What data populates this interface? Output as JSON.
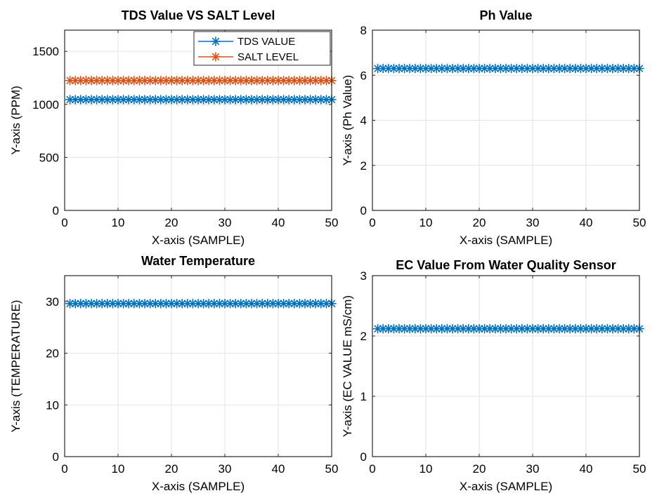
{
  "chart_data": [
    {
      "type": "line",
      "title": "TDS Value VS SALT Level",
      "xlabel": "X-axis (SAMPLE)",
      "ylabel": "Y-axis (PPM)",
      "xlim": [
        0,
        50
      ],
      "ylim": [
        0,
        1700
      ],
      "xticks": [
        0,
        10,
        20,
        30,
        40,
        50
      ],
      "yticks": [
        0,
        500,
        1000,
        1500
      ],
      "grid": true,
      "legend_position": "top-right",
      "x_start": 1,
      "x_end": 50,
      "series": [
        {
          "name": "TDS VALUE",
          "color": "#0072BD",
          "marker": "asterisk",
          "values": [
            1045,
            1045,
            1045,
            1045,
            1045,
            1045,
            1045,
            1045,
            1045,
            1045,
            1045,
            1045,
            1045,
            1045,
            1045,
            1045,
            1045,
            1045,
            1045,
            1045,
            1045,
            1045,
            1045,
            1045,
            1045,
            1045,
            1045,
            1045,
            1045,
            1045,
            1045,
            1045,
            1045,
            1045,
            1045,
            1045,
            1045,
            1045,
            1045,
            1045,
            1045,
            1045,
            1045,
            1045,
            1045,
            1045,
            1045,
            1045,
            1045,
            1045
          ]
        },
        {
          "name": "SALT LEVEL",
          "color": "#D95319",
          "marker": "asterisk",
          "values": [
            1225,
            1225,
            1225,
            1225,
            1225,
            1225,
            1225,
            1225,
            1225,
            1225,
            1225,
            1225,
            1225,
            1225,
            1225,
            1225,
            1225,
            1225,
            1225,
            1225,
            1225,
            1225,
            1225,
            1225,
            1225,
            1225,
            1225,
            1225,
            1225,
            1225,
            1225,
            1225,
            1225,
            1225,
            1225,
            1225,
            1225,
            1225,
            1225,
            1225,
            1225,
            1225,
            1225,
            1225,
            1225,
            1225,
            1225,
            1225,
            1225,
            1225
          ]
        }
      ]
    },
    {
      "type": "line",
      "title": "Ph Value",
      "xlabel": "X-axis (SAMPLE)",
      "ylabel": "Y-axis (Ph Value)",
      "xlim": [
        0,
        50
      ],
      "ylim": [
        0,
        8
      ],
      "xticks": [
        0,
        10,
        20,
        30,
        40,
        50
      ],
      "yticks": [
        0,
        2,
        4,
        6,
        8
      ],
      "grid": true,
      "x_start": 1,
      "x_end": 50,
      "series": [
        {
          "color": "#0072BD",
          "marker": "asterisk",
          "values": [
            6.3,
            6.3,
            6.3,
            6.3,
            6.3,
            6.3,
            6.3,
            6.3,
            6.3,
            6.3,
            6.3,
            6.3,
            6.3,
            6.3,
            6.3,
            6.3,
            6.3,
            6.3,
            6.3,
            6.3,
            6.3,
            6.3,
            6.3,
            6.3,
            6.3,
            6.3,
            6.3,
            6.3,
            6.3,
            6.3,
            6.3,
            6.3,
            6.3,
            6.3,
            6.3,
            6.3,
            6.3,
            6.3,
            6.3,
            6.3,
            6.3,
            6.3,
            6.3,
            6.3,
            6.3,
            6.3,
            6.3,
            6.3,
            6.3,
            6.3
          ]
        }
      ]
    },
    {
      "type": "line",
      "title": "Water Temperature",
      "xlabel": "X-axis (SAMPLE)",
      "ylabel": "Y-axis (TEMPERATURE)",
      "xlim": [
        0,
        50
      ],
      "ylim": [
        0,
        35
      ],
      "xticks": [
        0,
        10,
        20,
        30,
        40,
        50
      ],
      "yticks": [
        0,
        10,
        20,
        30
      ],
      "grid": true,
      "x_start": 1,
      "x_end": 50,
      "series": [
        {
          "color": "#0072BD",
          "marker": "asterisk",
          "values": [
            29.6,
            29.6,
            29.6,
            29.6,
            29.6,
            29.6,
            29.6,
            29.6,
            29.6,
            29.6,
            29.6,
            29.6,
            29.6,
            29.6,
            29.6,
            29.6,
            29.6,
            29.6,
            29.6,
            29.6,
            29.6,
            29.6,
            29.6,
            29.6,
            29.6,
            29.6,
            29.6,
            29.6,
            29.6,
            29.6,
            29.6,
            29.6,
            29.6,
            29.6,
            29.6,
            29.6,
            29.6,
            29.6,
            29.6,
            29.6,
            29.6,
            29.6,
            29.6,
            29.6,
            29.6,
            29.6,
            29.6,
            29.6,
            29.6,
            29.6
          ]
        }
      ]
    },
    {
      "type": "line",
      "title": "EC Value From Water Quality Sensor",
      "xlabel": "X-axis (SAMPLE)",
      "ylabel": "Y-axis (EC VALUE mS/cm)",
      "xlim": [
        0,
        50
      ],
      "ylim": [
        0,
        3
      ],
      "xticks": [
        0,
        10,
        20,
        30,
        40,
        50
      ],
      "yticks": [
        0,
        1,
        2,
        3
      ],
      "grid": true,
      "x_start": 1,
      "x_end": 50,
      "series": [
        {
          "color": "#0072BD",
          "marker": "asterisk",
          "values": [
            2.12,
            2.12,
            2.12,
            2.12,
            2.12,
            2.12,
            2.12,
            2.12,
            2.12,
            2.12,
            2.12,
            2.12,
            2.12,
            2.12,
            2.12,
            2.12,
            2.12,
            2.12,
            2.12,
            2.12,
            2.12,
            2.12,
            2.12,
            2.12,
            2.12,
            2.12,
            2.12,
            2.12,
            2.12,
            2.12,
            2.12,
            2.12,
            2.12,
            2.12,
            2.12,
            2.12,
            2.12,
            2.12,
            2.12,
            2.12,
            2.12,
            2.12,
            2.12,
            2.12,
            2.12,
            2.12,
            2.12,
            2.12,
            2.12,
            2.12
          ]
        }
      ]
    }
  ]
}
